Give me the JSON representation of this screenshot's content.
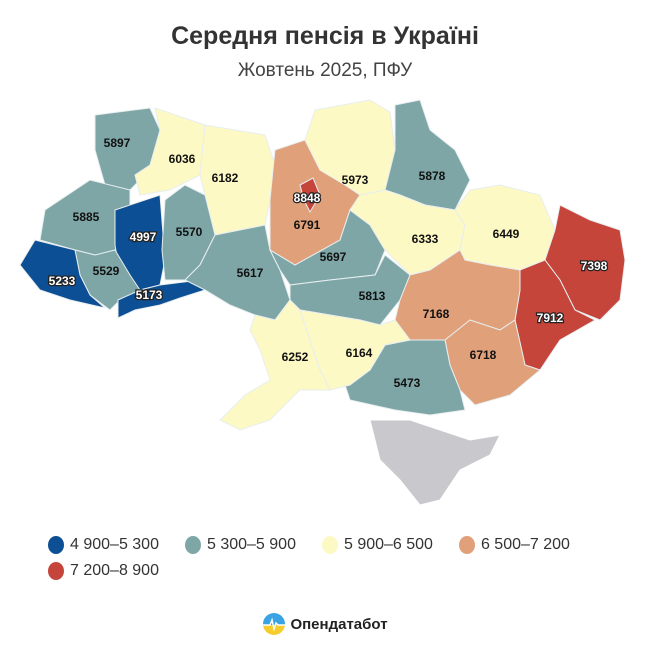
{
  "header": {
    "title": "Середня пенсія в Україні",
    "subtitle": "Жовтень 2025, ПФУ"
  },
  "colors": {
    "c1": "#0d4f94",
    "c2": "#7fa6a6",
    "c3": "#fdf9c4",
    "c4": "#e0a07a",
    "c5": "#c6453b",
    "no_data": "#c9c9cd"
  },
  "legend": [
    {
      "label": "4 900–5 300",
      "color": "#0d4f94"
    },
    {
      "label": "5 300–5 900",
      "color": "#7fa6a6"
    },
    {
      "label": "5 900–6 500",
      "color": "#fdf9c4"
    },
    {
      "label": "6 500–7 200",
      "color": "#e0a07a"
    },
    {
      "label": "7 200–8 900",
      "color": "#c6453b"
    }
  ],
  "regions": [
    {
      "value": "5897"
    },
    {
      "value": "6036"
    },
    {
      "value": "6182"
    },
    {
      "value": "6791"
    },
    {
      "value": "8848"
    },
    {
      "value": "5973"
    },
    {
      "value": "5878"
    },
    {
      "value": "5885"
    },
    {
      "value": "4997"
    },
    {
      "value": "5570"
    },
    {
      "value": "5529"
    },
    {
      "value": "5233"
    },
    {
      "value": "5173"
    },
    {
      "value": "5617"
    },
    {
      "value": "5697"
    },
    {
      "value": "5813"
    },
    {
      "value": "6333"
    },
    {
      "value": "6449"
    },
    {
      "value": "7398"
    },
    {
      "value": "7912"
    },
    {
      "value": "7168"
    },
    {
      "value": "6718"
    },
    {
      "value": "5473"
    },
    {
      "value": "6164"
    },
    {
      "value": "6252"
    }
  ],
  "logo": {
    "text": "Опендатабот"
  }
}
